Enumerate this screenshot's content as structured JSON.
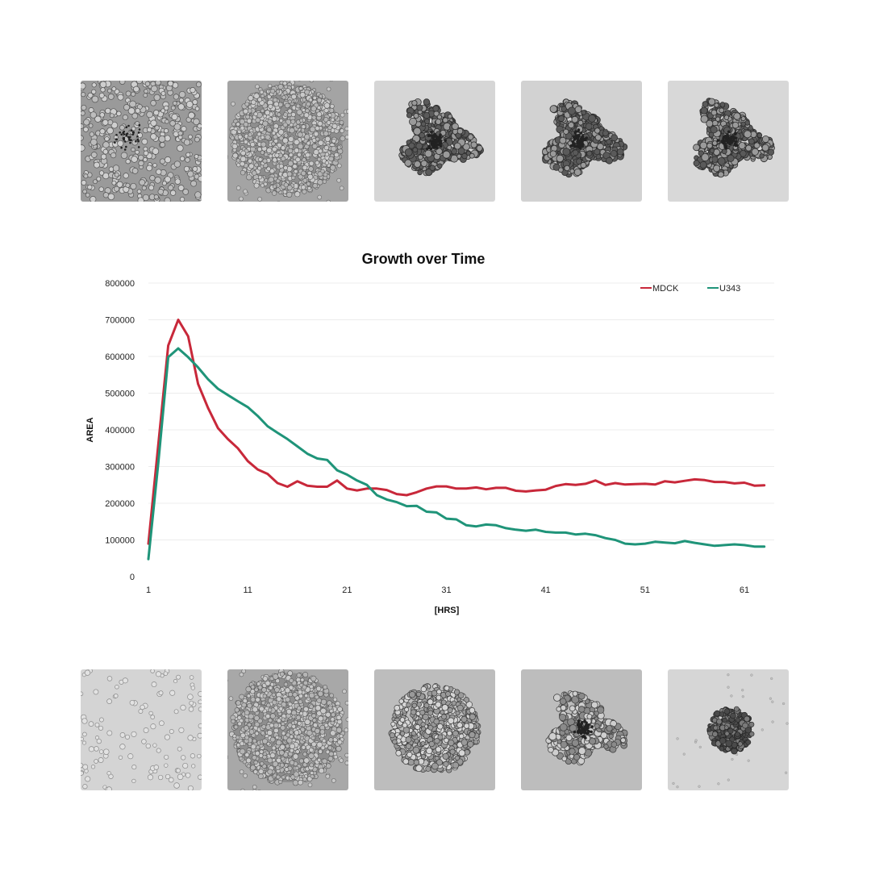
{
  "images": {
    "top_row": [
      {
        "name": "mdck-hour-1-micrograph",
        "bg": "#9a9a9a",
        "style": "scattered-clusters"
      },
      {
        "name": "mdck-hour-2-micrograph",
        "bg": "#a4a4a4",
        "style": "dense-disc"
      },
      {
        "name": "mdck-hour-3-micrograph",
        "bg": "#d6d6d6",
        "style": "rough-aggregate"
      },
      {
        "name": "mdck-hour-4-micrograph",
        "bg": "#d2d2d2",
        "style": "rough-aggregate"
      },
      {
        "name": "mdck-hour-5-micrograph",
        "bg": "#d8d8d8",
        "style": "rough-aggregate"
      }
    ],
    "bottom_row": [
      {
        "name": "u343-hour-1-micrograph",
        "bg": "#d4d4d4",
        "style": "sparse-cells"
      },
      {
        "name": "u343-hour-2-micrograph",
        "bg": "#a8a8a8",
        "style": "dense-disc"
      },
      {
        "name": "u343-hour-3-micrograph",
        "bg": "#bdbdbd",
        "style": "cell-disc"
      },
      {
        "name": "u343-hour-4-micrograph",
        "bg": "#bdbdbd",
        "style": "loose-aggregate"
      },
      {
        "name": "u343-hour-5-micrograph",
        "bg": "#d6d6d6",
        "style": "small-spheroid"
      }
    ]
  },
  "chart_data": {
    "type": "line",
    "title": "Growth over Time",
    "xlabel": "[HRS]",
    "ylabel": "AREA",
    "xlim": [
      1,
      64
    ],
    "ylim": [
      0,
      800000
    ],
    "xticks": [
      1,
      11,
      21,
      31,
      41,
      51,
      61
    ],
    "yticks": [
      0,
      100000,
      200000,
      300000,
      400000,
      500000,
      600000,
      700000,
      800000
    ],
    "grid": true,
    "legend": "top-right",
    "x": [
      1,
      2,
      3,
      4,
      5,
      6,
      7,
      8,
      9,
      10,
      11,
      12,
      13,
      14,
      15,
      16,
      17,
      18,
      19,
      20,
      21,
      22,
      23,
      24,
      25,
      26,
      27,
      28,
      29,
      30,
      31,
      32,
      33,
      34,
      35,
      36,
      37,
      38,
      39,
      40,
      41,
      42,
      43,
      44,
      45,
      46,
      47,
      48,
      49,
      50,
      51,
      52,
      53,
      54,
      55,
      56,
      57,
      58,
      59,
      60,
      61,
      62,
      63
    ],
    "series": [
      {
        "name": "MDCK",
        "color": "#c8283a",
        "values": [
          90000,
          360000,
          630000,
          700000,
          655000,
          525000,
          460000,
          405000,
          375000,
          350000,
          315000,
          292000,
          280000,
          255000,
          245000,
          260000,
          248000,
          245000,
          245000,
          262000,
          240000,
          235000,
          240000,
          240000,
          236000,
          225000,
          222000,
          230000,
          240000,
          246000,
          246000,
          240000,
          240000,
          243000,
          238000,
          242000,
          242000,
          234000,
          232000,
          235000,
          237000,
          247000,
          252000,
          250000,
          253000,
          262000,
          250000,
          255000,
          251000,
          252000,
          253000,
          251000,
          260000,
          257000,
          261000,
          265000,
          263000,
          258000,
          258000,
          254000,
          256000,
          248000,
          249000
        ]
      },
      {
        "name": "U343",
        "color": "#1f9479",
        "values": [
          48000,
          310000,
          598000,
          622000,
          598000,
          570000,
          538000,
          512000,
          495000,
          478000,
          462000,
          438000,
          410000,
          392000,
          375000,
          355000,
          335000,
          322000,
          318000,
          290000,
          278000,
          262000,
          250000,
          222000,
          210000,
          203000,
          192000,
          193000,
          177000,
          175000,
          158000,
          156000,
          140000,
          137000,
          142000,
          140000,
          132000,
          128000,
          125000,
          128000,
          122000,
          120000,
          120000,
          115000,
          117000,
          113000,
          105000,
          100000,
          90000,
          88000,
          90000,
          95000,
          93000,
          91000,
          97000,
          92000,
          88000,
          84000,
          86000,
          88000,
          86000,
          82000,
          82000
        ]
      }
    ]
  }
}
